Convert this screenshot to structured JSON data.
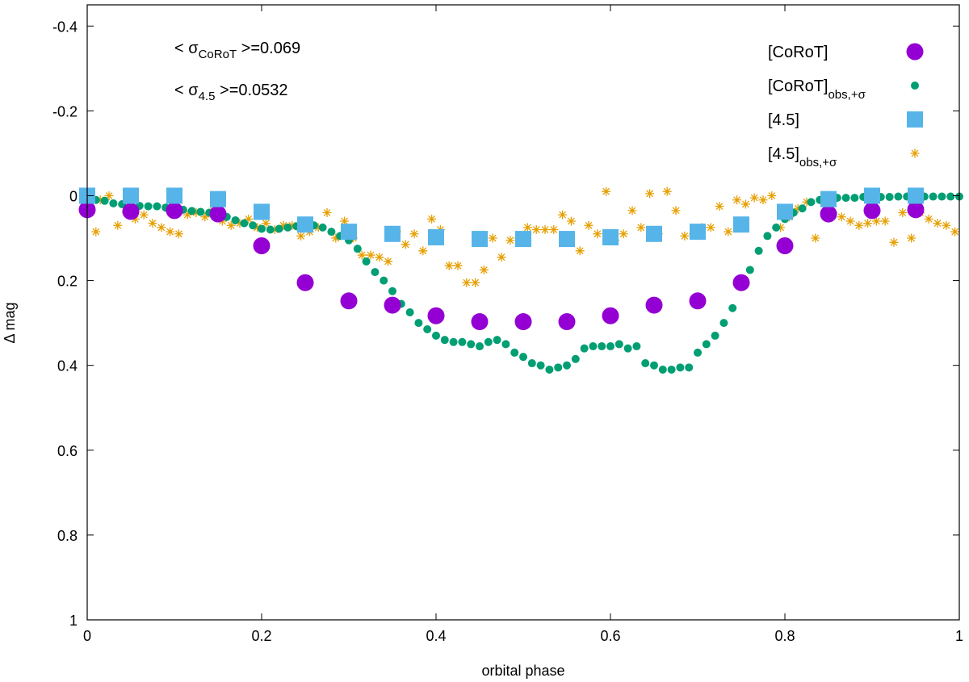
{
  "chart_data": {
    "type": "scatter",
    "title": "",
    "xlabel": "orbital phase",
    "ylabel": "Δ mag",
    "xlim": [
      0,
      1
    ],
    "ylim": [
      -0.45,
      1
    ],
    "y_inverted": true,
    "xticks": [
      0,
      0.2,
      0.4,
      0.6,
      0.8,
      1
    ],
    "xtick_labels": [
      "0",
      "0.2",
      "0.4",
      "0.6",
      "0.8",
      "1"
    ],
    "yticks": [
      -0.4,
      -0.2,
      0,
      0.2,
      0.4,
      0.6,
      0.8,
      1
    ],
    "ytick_labels": [
      "-0.4",
      "-0.2",
      "0",
      "0.2",
      "0.4",
      "0.6",
      "0.8",
      "1"
    ],
    "grid": false,
    "legend_position": "top-right",
    "annotations": [
      {
        "prefix": "< σ",
        "sub": "CoRoT",
        "suffix": " >=0.069"
      },
      {
        "prefix": "< σ",
        "sub": "4.5",
        "suffix": " >=0.0532"
      }
    ],
    "series": [
      {
        "name": "[CoRoT]",
        "name_sub": "",
        "marker": "circle-large",
        "color": "#9400d3",
        "x": [
          0,
          0.05,
          0.1,
          0.15,
          0.2,
          0.25,
          0.3,
          0.35,
          0.4,
          0.45,
          0.5,
          0.55,
          0.6,
          0.65,
          0.7,
          0.75,
          0.8,
          0.85,
          0.9,
          0.95
        ],
        "y": [
          0.033,
          0.037,
          0.035,
          0.043,
          0.118,
          0.205,
          0.248,
          0.258,
          0.283,
          0.297,
          0.297,
          0.297,
          0.283,
          0.258,
          0.248,
          0.205,
          0.118,
          0.043,
          0.035,
          0.033
        ]
      },
      {
        "name": "[CoRoT]",
        "name_sub": "obs,+σ",
        "marker": "circle-small",
        "color": "#009e73",
        "x": [
          0,
          0.01,
          0.02,
          0.03,
          0.04,
          0.05,
          0.06,
          0.07,
          0.08,
          0.09,
          0.1,
          0.11,
          0.12,
          0.13,
          0.14,
          0.15,
          0.16,
          0.17,
          0.18,
          0.19,
          0.2,
          0.21,
          0.22,
          0.23,
          0.24,
          0.25,
          0.26,
          0.27,
          0.28,
          0.29,
          0.3,
          0.31,
          0.32,
          0.33,
          0.34,
          0.35,
          0.36,
          0.37,
          0.38,
          0.39,
          0.4,
          0.41,
          0.42,
          0.43,
          0.44,
          0.45,
          0.46,
          0.47,
          0.48,
          0.49,
          0.5,
          0.51,
          0.52,
          0.53,
          0.54,
          0.55,
          0.56,
          0.57,
          0.58,
          0.59,
          0.6,
          0.61,
          0.62,
          0.63,
          0.64,
          0.65,
          0.66,
          0.67,
          0.68,
          0.69,
          0.7,
          0.71,
          0.72,
          0.73,
          0.74,
          0.75,
          0.76,
          0.77,
          0.78,
          0.79,
          0.8,
          0.81,
          0.82,
          0.83,
          0.84,
          0.85,
          0.86,
          0.87,
          0.88,
          0.89,
          0.9,
          0.91,
          0.92,
          0.93,
          0.94,
          0.95,
          0.96,
          0.97,
          0.98,
          0.99,
          1.0
        ],
        "y": [
          0.005,
          0.01,
          0.012,
          0.018,
          0.02,
          0.022,
          0.024,
          0.025,
          0.025,
          0.028,
          0.03,
          0.033,
          0.036,
          0.038,
          0.04,
          0.045,
          0.05,
          0.058,
          0.065,
          0.07,
          0.078,
          0.08,
          0.078,
          0.075,
          0.072,
          0.07,
          0.07,
          0.075,
          0.085,
          0.095,
          0.105,
          0.125,
          0.155,
          0.18,
          0.2,
          0.225,
          0.255,
          0.275,
          0.3,
          0.315,
          0.33,
          0.34,
          0.345,
          0.345,
          0.35,
          0.355,
          0.345,
          0.34,
          0.35,
          0.37,
          0.38,
          0.395,
          0.4,
          0.41,
          0.405,
          0.4,
          0.385,
          0.36,
          0.355,
          0.355,
          0.355,
          0.35,
          0.36,
          0.355,
          0.395,
          0.4,
          0.41,
          0.41,
          0.405,
          0.405,
          0.37,
          0.35,
          0.33,
          0.3,
          0.265,
          0.215,
          0.175,
          0.13,
          0.095,
          0.075,
          0.055,
          0.04,
          0.03,
          0.015,
          0.01,
          0.005,
          0.005,
          0.005,
          0.005,
          0.003,
          0.003,
          0.003,
          0.003,
          0.002,
          0.002,
          0.002,
          0.002,
          0.002,
          0.002,
          0.002,
          0.002
        ]
      },
      {
        "name": "[4.5]",
        "name_sub": "",
        "marker": "square",
        "color": "#56b4e9",
        "x": [
          0,
          0.05,
          0.1,
          0.15,
          0.2,
          0.25,
          0.3,
          0.35,
          0.4,
          0.45,
          0.5,
          0.55,
          0.6,
          0.65,
          0.7,
          0.75,
          0.8,
          0.85,
          0.9,
          0.95
        ],
        "y": [
          0.0,
          0.0,
          0.0,
          0.008,
          0.038,
          0.068,
          0.085,
          0.09,
          0.098,
          0.102,
          0.102,
          0.102,
          0.098,
          0.09,
          0.085,
          0.068,
          0.038,
          0.008,
          0.0,
          0.0
        ]
      },
      {
        "name": "[4.5]",
        "name_sub": "obs,+σ",
        "marker": "asterisk",
        "color": "#e69f00",
        "x": [
          0.01,
          0.015,
          0.025,
          0.035,
          0.045,
          0.055,
          0.065,
          0.075,
          0.085,
          0.095,
          0.105,
          0.115,
          0.125,
          0.135,
          0.145,
          0.155,
          0.165,
          0.175,
          0.185,
          0.195,
          0.205,
          0.215,
          0.225,
          0.235,
          0.245,
          0.255,
          0.265,
          0.275,
          0.285,
          0.295,
          0.305,
          0.315,
          0.325,
          0.335,
          0.345,
          0.355,
          0.365,
          0.375,
          0.385,
          0.395,
          0.405,
          0.415,
          0.425,
          0.435,
          0.445,
          0.455,
          0.465,
          0.475,
          0.485,
          0.495,
          0.505,
          0.515,
          0.525,
          0.535,
          0.545,
          0.555,
          0.565,
          0.575,
          0.585,
          0.595,
          0.605,
          0.615,
          0.625,
          0.635,
          0.645,
          0.655,
          0.665,
          0.675,
          0.685,
          0.695,
          0.705,
          0.715,
          0.725,
          0.735,
          0.745,
          0.755,
          0.765,
          0.775,
          0.785,
          0.795,
          0.805,
          0.815,
          0.825,
          0.835,
          0.845,
          0.855,
          0.865,
          0.875,
          0.885,
          0.895,
          0.905,
          0.915,
          0.925,
          0.935,
          0.945,
          0.955,
          0.965,
          0.975,
          0.985,
          0.995
        ],
        "y": [
          0.085,
          0.01,
          0.0,
          0.07,
          0.04,
          0.055,
          0.045,
          0.065,
          0.075,
          0.085,
          0.09,
          0.045,
          0.04,
          0.05,
          0.035,
          0.06,
          0.07,
          0.065,
          0.055,
          0.075,
          0.065,
          0.08,
          0.07,
          0.07,
          0.095,
          0.085,
          0.075,
          0.04,
          0.1,
          0.06,
          0.1,
          0.14,
          0.14,
          0.145,
          0.155,
          0.085,
          0.115,
          0.09,
          0.13,
          0.055,
          0.08,
          0.165,
          0.165,
          0.205,
          0.205,
          0.175,
          0.1,
          0.145,
          0.105,
          0.1,
          0.075,
          0.08,
          0.08,
          0.08,
          0.045,
          0.06,
          0.13,
          0.07,
          0.09,
          -0.01,
          0.105,
          0.09,
          0.035,
          0.075,
          -0.005,
          0.09,
          -0.01,
          0.035,
          0.095,
          0.09,
          0.075,
          0.075,
          0.025,
          0.085,
          0.01,
          0.02,
          0.005,
          0.01,
          0.0,
          0.075,
          0.05,
          0.03,
          0.015,
          0.1,
          0.01,
          0.04,
          0.05,
          0.06,
          0.07,
          0.065,
          0.06,
          0.06,
          0.11,
          0.04,
          0.1,
          0.04,
          0.055,
          0.065,
          0.07,
          0.085
        ]
      }
    ]
  }
}
